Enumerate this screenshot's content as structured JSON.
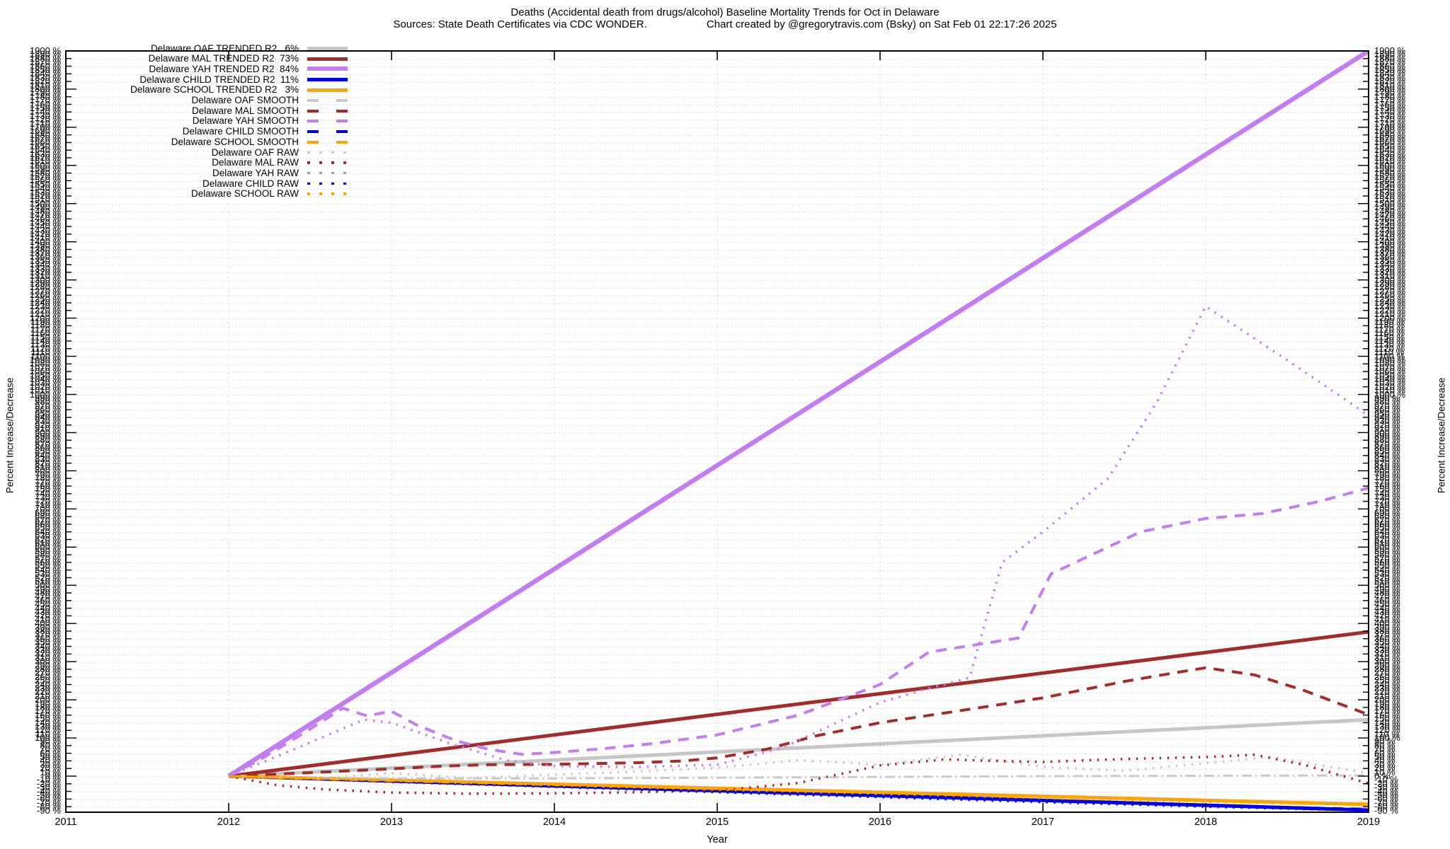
{
  "title": "Deaths (Accidental death from drugs/alcohol)  Baseline Mortality Trends for Oct in Delaware",
  "subtitle": {
    "sources": "Sources: State Death Certificates via CDC WONDER.",
    "credit": "Chart created by @gregorytravis.com (Bsky) on Sat Feb 01 22:17:26 2025"
  },
  "axes": {
    "x_title": "Year",
    "y_title_left": "Percent Increase/Decrease",
    "y_title_right": "Percent Increase/Decrease",
    "x_tick_labels": [
      "2011",
      "2012",
      "2013",
      "2014",
      "2015",
      "2016",
      "2017",
      "2018",
      "2019"
    ],
    "y_ticks": {
      "max": 1900,
      "min": -90,
      "step": 10,
      "suffix": " %"
    }
  },
  "chart_data": {
    "type": "line",
    "title": "Deaths (Accidental death from drugs/alcohol)  Baseline Mortality Trends for Oct in Delaware",
    "xlabel": "Year",
    "ylabel": "Percent Increase/Decrease",
    "x_range": [
      2011,
      2019
    ],
    "y_range": [
      -95,
      1900
    ],
    "grid": true,
    "legend_position": "top-left",
    "series": [
      {
        "name": "delaware-oaf-trended",
        "legend_label": "Delaware OAF TRENDED R2   6%",
        "r2": "6%",
        "color": "#c6c6c6",
        "style": "solid",
        "width": 5,
        "points": [
          [
            2012,
            0
          ],
          [
            2019,
            148
          ]
        ]
      },
      {
        "name": "delaware-mal-trended",
        "legend_label": "Delaware MAL TRENDED R2  73%",
        "r2": "73%",
        "color": "#a52a2a",
        "style": "solid",
        "width": 5,
        "points": [
          [
            2012,
            0
          ],
          [
            2019,
            378
          ]
        ]
      },
      {
        "name": "delaware-yah-trended",
        "legend_label": "Delaware YAH TRENDED R2  84%",
        "r2": "84%",
        "color": "#c47df0",
        "style": "solid",
        "width": 6.5,
        "points": [
          [
            2012,
            0
          ],
          [
            2019,
            1900
          ]
        ]
      },
      {
        "name": "delaware-child-trended",
        "legend_label": "Delaware CHILD TRENDED R2  11%",
        "r2": "11%",
        "color": "#0000ee",
        "style": "solid",
        "width": 5,
        "points": [
          [
            2012,
            0
          ],
          [
            2019,
            -89
          ]
        ]
      },
      {
        "name": "delaware-school-trended",
        "legend_label": "Delaware SCHOOL TRENDED R2   3%",
        "r2": "3%",
        "color": "#ffa500",
        "style": "solid",
        "width": 5,
        "points": [
          [
            2012,
            0
          ],
          [
            2019,
            -74
          ]
        ]
      },
      {
        "name": "delaware-oaf-smooth",
        "legend_label": "Delaware OAF SMOOTH",
        "color": "#c9c9c9",
        "style": "dashdot",
        "width": 3,
        "points": [
          [
            2012,
            0
          ],
          [
            2012.5,
            -4
          ],
          [
            2013,
            -6
          ],
          [
            2014,
            -6
          ],
          [
            2015,
            -4
          ],
          [
            2016,
            -2
          ],
          [
            2017,
            0
          ],
          [
            2018,
            1
          ],
          [
            2019,
            2
          ]
        ]
      },
      {
        "name": "delaware-mal-smooth",
        "legend_label": "Delaware MAL SMOOTH",
        "color": "#a52a2a",
        "style": "dashed",
        "width": 4,
        "points": [
          [
            2012,
            0
          ],
          [
            2012.5,
            9
          ],
          [
            2013,
            19
          ],
          [
            2013.3,
            26
          ],
          [
            2013.6,
            30
          ],
          [
            2014,
            31
          ],
          [
            2014.5,
            35
          ],
          [
            2014.8,
            40
          ],
          [
            2015,
            48
          ],
          [
            2015.3,
            70
          ],
          [
            2015.6,
            105
          ],
          [
            2016,
            140
          ],
          [
            2016.5,
            172
          ],
          [
            2017,
            205
          ],
          [
            2017.5,
            248
          ],
          [
            2017.8,
            270
          ],
          [
            2018,
            284
          ],
          [
            2018.3,
            265
          ],
          [
            2018.6,
            225
          ],
          [
            2019,
            161
          ]
        ]
      },
      {
        "name": "delaware-yah-smooth",
        "legend_label": "Delaware YAH SMOOTH",
        "color": "#c47df0",
        "style": "dashed",
        "width": 4,
        "points": [
          [
            2012,
            0
          ],
          [
            2012.2,
            45
          ],
          [
            2012.45,
            110
          ],
          [
            2012.7,
            178
          ],
          [
            2012.85,
            158
          ],
          [
            2013,
            170
          ],
          [
            2013.15,
            135
          ],
          [
            2013.4,
            92
          ],
          [
            2013.6,
            70
          ],
          [
            2013.8,
            57
          ],
          [
            2014,
            62
          ],
          [
            2014.3,
            72
          ],
          [
            2014.6,
            85
          ],
          [
            2015,
            108
          ],
          [
            2015.5,
            160
          ],
          [
            2016,
            240
          ],
          [
            2016.3,
            325
          ],
          [
            2016.6,
            345
          ],
          [
            2016.85,
            362
          ],
          [
            2017.05,
            530
          ],
          [
            2017.3,
            580
          ],
          [
            2017.6,
            640
          ],
          [
            2018,
            675
          ],
          [
            2018.35,
            688
          ],
          [
            2018.7,
            720
          ],
          [
            2019,
            755
          ]
        ]
      },
      {
        "name": "delaware-child-smooth",
        "legend_label": "Delaware CHILD SMOOTH",
        "color": "#0000ee",
        "style": "dashed",
        "width": 3,
        "points": [
          [
            2012,
            0
          ],
          [
            2013,
            -14
          ],
          [
            2014,
            -27
          ],
          [
            2015,
            -40
          ],
          [
            2016,
            -52
          ],
          [
            2017,
            -64
          ],
          [
            2018,
            -76
          ],
          [
            2019,
            -86
          ]
        ]
      },
      {
        "name": "delaware-school-smooth",
        "legend_label": "Delaware SCHOOL SMOOTH",
        "color": "#ffa500",
        "style": "dashed",
        "width": 3,
        "points": [
          [
            2012,
            0
          ],
          [
            2013,
            -11
          ],
          [
            2014,
            -22
          ],
          [
            2015,
            -33
          ],
          [
            2016,
            -44
          ],
          [
            2017,
            -54
          ],
          [
            2018,
            -64
          ],
          [
            2019,
            -72
          ]
        ]
      },
      {
        "name": "delaware-oaf-raw",
        "legend_label": "Delaware OAF RAW",
        "color": "#c9c9c9",
        "style": "dotted",
        "width": 3.5,
        "points": [
          [
            2012,
            0
          ],
          [
            2012.5,
            -8
          ],
          [
            2013,
            8
          ],
          [
            2013.5,
            -5
          ],
          [
            2014,
            4
          ],
          [
            2014.5,
            12
          ],
          [
            2015,
            22
          ],
          [
            2015.5,
            42
          ],
          [
            2016,
            30
          ],
          [
            2016.5,
            56
          ],
          [
            2017,
            24
          ],
          [
            2017.5,
            14
          ],
          [
            2018,
            34
          ],
          [
            2018.4,
            50
          ],
          [
            2019,
            8
          ]
        ]
      },
      {
        "name": "delaware-mal-raw",
        "legend_label": "Delaware MAL RAW",
        "color": "#a52a2a",
        "style": "dotted",
        "width": 3.5,
        "points": [
          [
            2012,
            0
          ],
          [
            2012.3,
            -24
          ],
          [
            2012.6,
            -35
          ],
          [
            2013,
            -43
          ],
          [
            2013.5,
            -46
          ],
          [
            2014,
            -45
          ],
          [
            2014.5,
            -42
          ],
          [
            2015,
            -38
          ],
          [
            2015.5,
            -18
          ],
          [
            2016,
            28
          ],
          [
            2016.4,
            44
          ],
          [
            2016.7,
            40
          ],
          [
            2017,
            37
          ],
          [
            2017.3,
            42
          ],
          [
            2017.6,
            46
          ],
          [
            2018,
            50
          ],
          [
            2018.3,
            56
          ],
          [
            2018.6,
            30
          ],
          [
            2019,
            -19
          ]
        ]
      },
      {
        "name": "delaware-yah-raw",
        "legend_label": "Delaware YAH RAW",
        "color": "#c47df0",
        "style": "dotted",
        "width": 3.5,
        "points": [
          [
            2012,
            0
          ],
          [
            2012.4,
            70
          ],
          [
            2012.83,
            148
          ],
          [
            2013,
            140
          ],
          [
            2013.35,
            87
          ],
          [
            2013.7,
            42
          ],
          [
            2014,
            26
          ],
          [
            2014.5,
            24
          ],
          [
            2015,
            30
          ],
          [
            2015.4,
            74
          ],
          [
            2016,
            193
          ],
          [
            2016.3,
            230
          ],
          [
            2016.55,
            258
          ],
          [
            2016.75,
            560
          ],
          [
            2017,
            640
          ],
          [
            2017.4,
            780
          ],
          [
            2017.7,
            980
          ],
          [
            2018,
            1231
          ],
          [
            2018.5,
            1090
          ],
          [
            2019,
            945
          ]
        ]
      },
      {
        "name": "delaware-child-raw",
        "legend_label": "Delaware CHILD RAW",
        "color": "#0000ee",
        "style": "dotted",
        "width": 3.5,
        "points": [
          [
            2012,
            0
          ],
          [
            2013,
            -15
          ],
          [
            2014,
            -28
          ],
          [
            2015,
            -42
          ],
          [
            2016,
            -55
          ],
          [
            2017,
            -68
          ],
          [
            2018,
            -80
          ],
          [
            2019,
            -90
          ]
        ]
      },
      {
        "name": "delaware-school-raw",
        "legend_label": "Delaware SCHOOL RAW",
        "color": "#ffa500",
        "style": "dotted",
        "width": 3.5,
        "points": [
          [
            2012,
            0
          ],
          [
            2013,
            -12
          ],
          [
            2014,
            -24
          ],
          [
            2015,
            -35
          ],
          [
            2016,
            -46
          ],
          [
            2017,
            -57
          ],
          [
            2018,
            -67
          ],
          [
            2019,
            -75
          ]
        ]
      }
    ]
  }
}
